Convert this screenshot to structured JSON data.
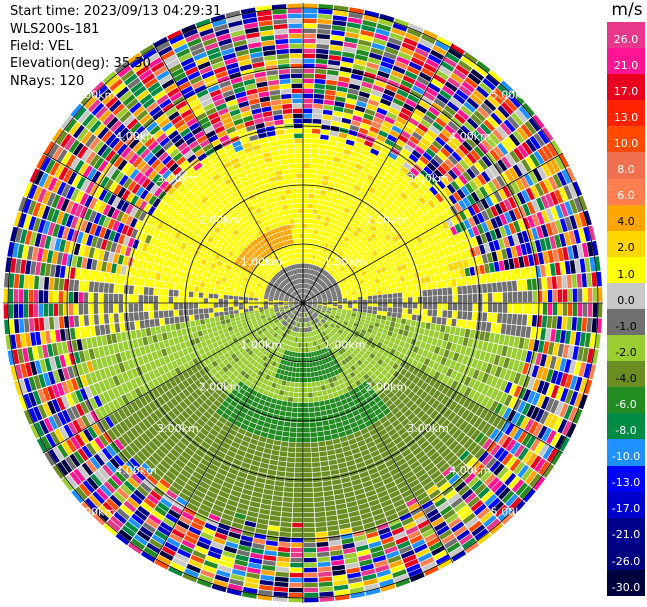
{
  "info": {
    "start_time": "Start time: 2023/09/13 04:29:31",
    "instrument": "WLS200s-181",
    "field": "Field: VEL",
    "elevation": "Elevation(deg): 35.30",
    "nrays": "NRays: 120"
  },
  "chart_data": {
    "type": "heatmap",
    "subtype": "polar-ppi",
    "field": "VEL",
    "units": "m/s",
    "elevation_deg": 35.3,
    "n_rays": 120,
    "ring_labels": [
      "1.00km",
      "2.00km",
      "3.00km",
      "4.00km",
      "5.00km"
    ],
    "range_rings_km": [
      1,
      2,
      3,
      4,
      5
    ],
    "colorbar": {
      "unit_label": "m/s",
      "ticks": [
        "26.0",
        "21.0",
        "17.0",
        "13.0",
        "10.0",
        "8.0",
        "6.0",
        "4.0",
        "2.0",
        "1.0",
        "0.0",
        "-1.0",
        "-2.0",
        "-4.0",
        "-6.0",
        "-8.0",
        "-10.0",
        "-13.0",
        "-17.0",
        "-21.0",
        "-26.0",
        "-30.0"
      ],
      "colors": [
        "#e8388c",
        "#ff1493",
        "#e8001e",
        "#ff2200",
        "#ff4a00",
        "#f07050",
        "#ff7f50",
        "#ffa500",
        "#ffd700",
        "#ffff00",
        "#c8c8c8",
        "#707070",
        "#9acd32",
        "#6b8e23",
        "#228b22",
        "#008b45",
        "#1e90ff",
        "#0000ff",
        "#0000cd",
        "#00008b",
        "#000080",
        "#000040"
      ]
    }
  }
}
